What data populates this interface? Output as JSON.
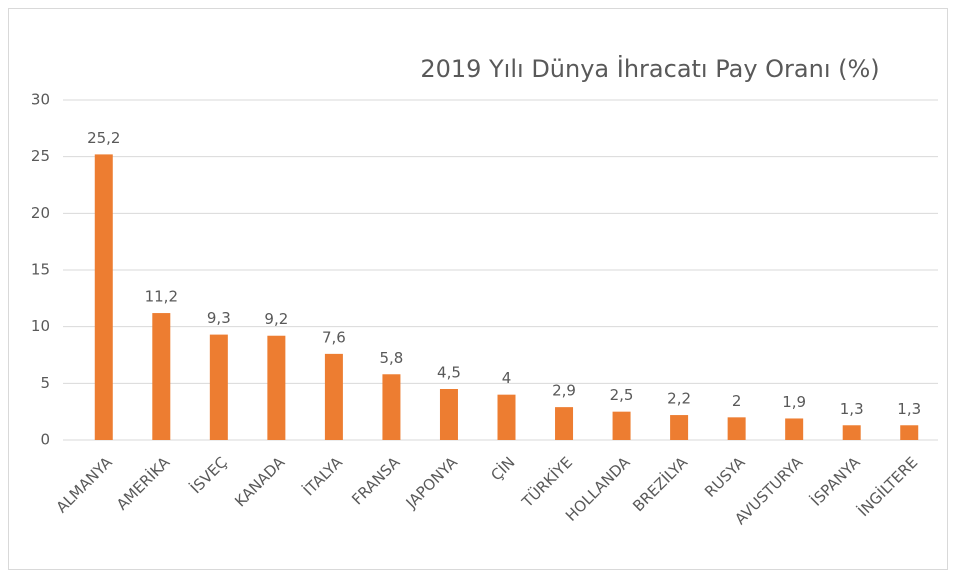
{
  "chart_data": {
    "type": "bar",
    "title": "2019 Yılı Dünya İhracatı Pay Oranı (%)",
    "categories": [
      "ALMANYA",
      "AMERİKA",
      "İSVEÇ",
      "KANADA",
      "İTALYA",
      "FRANSA",
      "JAPONYA",
      "ÇİN",
      "TÜRKİYE",
      "HOLLANDA",
      "BREZİLYA",
      "RUSYA",
      "AVUSTURYA",
      "İSPANYA",
      "İNGİLTERE"
    ],
    "values": [
      25.2,
      11.2,
      9.3,
      9.2,
      7.6,
      5.8,
      4.5,
      4,
      2.9,
      2.5,
      2.2,
      2,
      1.9,
      1.3,
      1.3
    ],
    "value_labels": [
      "25,2",
      "11,2",
      "9,3",
      "9,2",
      "7,6",
      "5,8",
      "4,5",
      "4",
      "2,9",
      "2,5",
      "2,2",
      "2",
      "1,9",
      "1,3",
      "1,3"
    ],
    "color": "#ed7d31",
    "ylim": [
      0,
      30
    ],
    "yticks": [
      0,
      5,
      10,
      15,
      20,
      25,
      30
    ],
    "grid": true
  }
}
